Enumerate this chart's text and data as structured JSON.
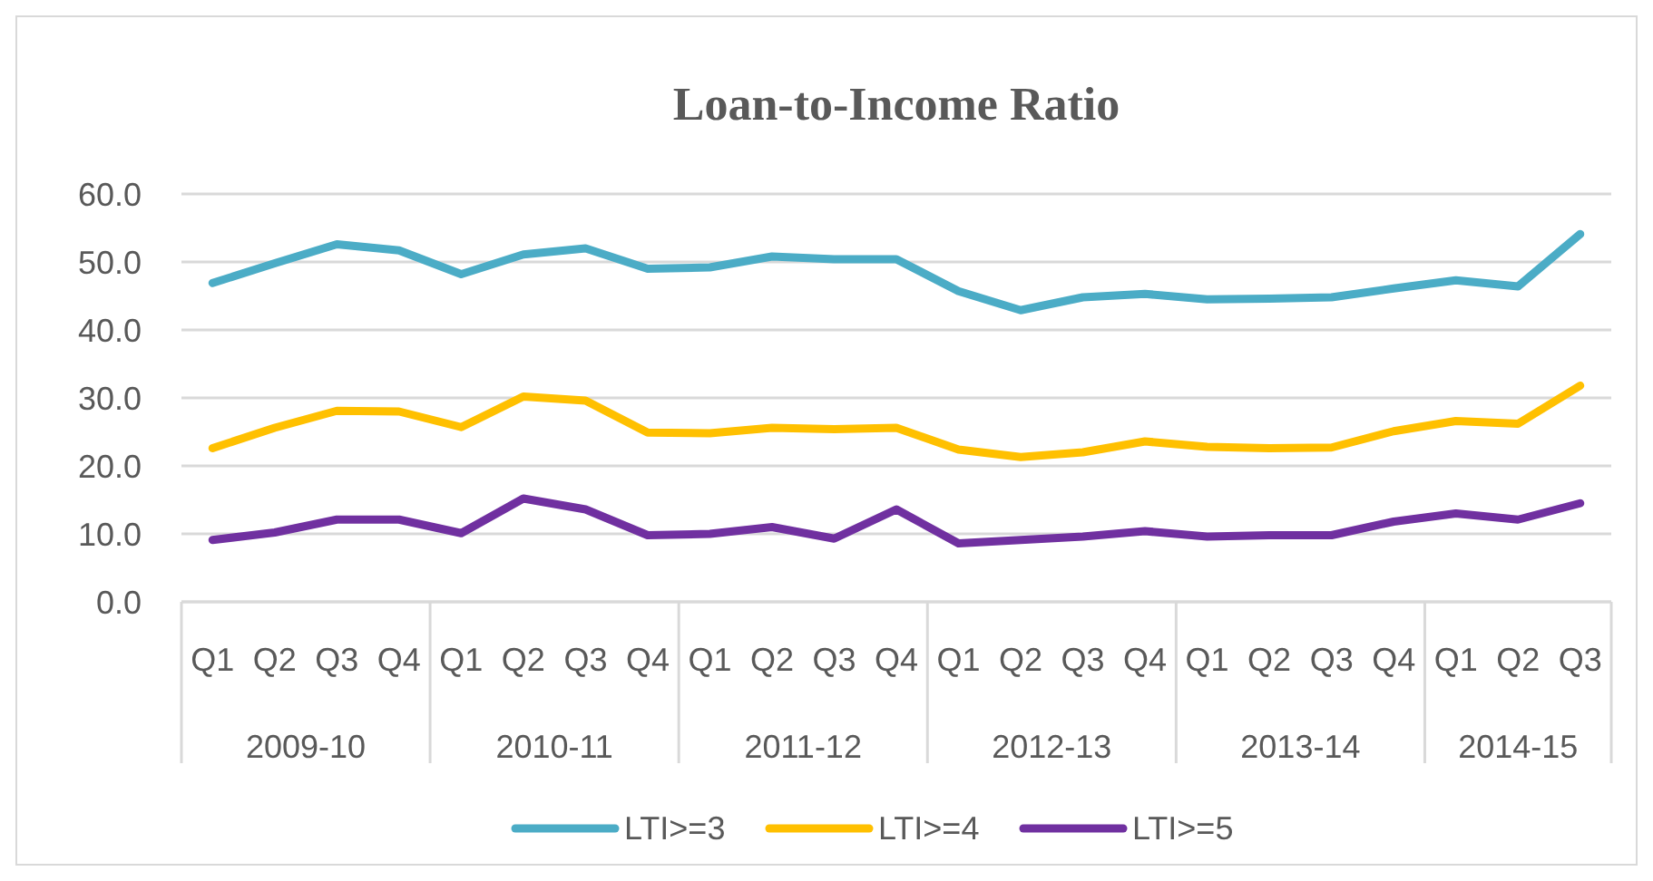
{
  "chart_data": {
    "type": "line",
    "title": "Loan-to-Income Ratio",
    "categories": [
      "Q1",
      "Q2",
      "Q3",
      "Q4",
      "Q1",
      "Q2",
      "Q3",
      "Q4",
      "Q1",
      "Q2",
      "Q3",
      "Q4",
      "Q1",
      "Q2",
      "Q3",
      "Q4",
      "Q1",
      "Q2",
      "Q3",
      "Q4",
      "Q1",
      "Q2",
      "Q3"
    ],
    "annotations": [
      "2009-10",
      "2010-11",
      "2011-12",
      "2012-13",
      "2013-14",
      "2014-15"
    ],
    "series": [
      {
        "name": "LTI>=3",
        "color": "#4bacc6",
        "values": [
          46.9,
          49.8,
          52.6,
          51.7,
          48.2,
          51.1,
          52.0,
          49.0,
          49.2,
          50.8,
          50.4,
          50.4,
          45.7,
          42.9,
          44.8,
          45.3,
          44.5,
          44.6,
          44.8,
          46.1,
          47.3,
          46.4,
          54.1
        ]
      },
      {
        "name": "LTI>=4",
        "color": "#ffc000",
        "values": [
          22.6,
          25.6,
          28.1,
          28.0,
          25.7,
          30.2,
          29.6,
          24.9,
          24.8,
          25.6,
          25.4,
          25.6,
          22.4,
          21.3,
          22.0,
          23.6,
          22.8,
          22.6,
          22.7,
          25.1,
          26.6,
          26.2,
          31.8
        ]
      },
      {
        "name": "LTI>=5",
        "color": "#7030a0",
        "values": [
          9.1,
          10.2,
          12.1,
          12.1,
          10.1,
          15.2,
          13.6,
          9.8,
          10.0,
          11.0,
          9.3,
          13.6,
          8.6,
          9.1,
          9.6,
          10.4,
          9.6,
          9.8,
          9.8,
          11.8,
          13.0,
          12.1,
          14.5
        ]
      }
    ],
    "ylim": [
      0,
      60
    ],
    "yticks": [
      {
        "value": 0,
        "label": "0.0"
      },
      {
        "value": 10,
        "label": "10.0"
      },
      {
        "value": 20,
        "label": "20.0"
      },
      {
        "value": 30,
        "label": "30.0"
      },
      {
        "value": 40,
        "label": "40.0"
      },
      {
        "value": 50,
        "label": "50.0"
      },
      {
        "value": 60,
        "label": "60.0"
      }
    ],
    "grid": "y",
    "legend": "bottom",
    "marker": "none",
    "line_style": "solid"
  }
}
